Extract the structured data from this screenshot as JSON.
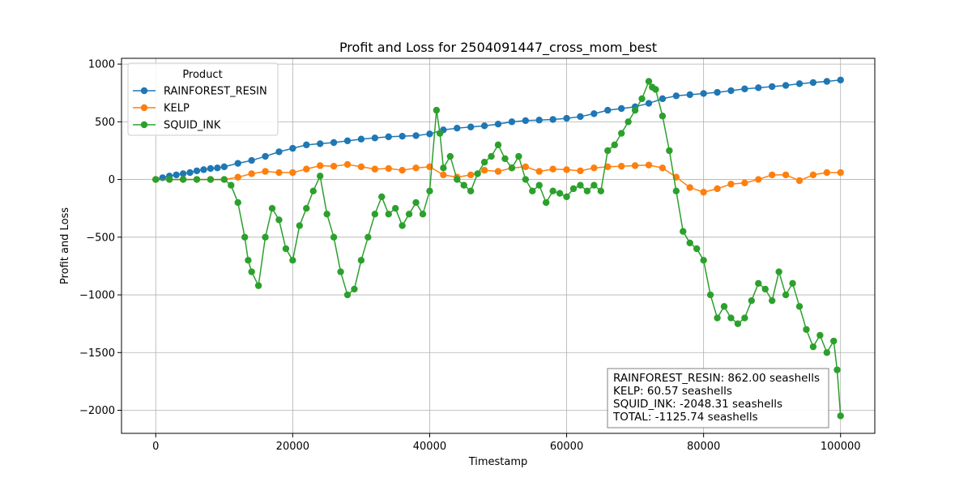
{
  "chart_data": {
    "type": "line",
    "title": "Profit and Loss for 2504091447_cross_mom_best",
    "xlabel": "Timestamp",
    "ylabel": "Profit and Loss",
    "xlim": [
      -5000,
      105000
    ],
    "ylim": [
      -2200,
      1050
    ],
    "xticks": [
      0,
      20000,
      40000,
      60000,
      80000,
      100000
    ],
    "xtick_labels": [
      "0",
      "20000",
      "40000",
      "60000",
      "80000",
      "100000"
    ],
    "yticks": [
      -2000,
      -1500,
      -1000,
      -500,
      0,
      500,
      1000
    ],
    "ytick_labels": [
      "−2000",
      "−1500",
      "−1000",
      "−500",
      "0",
      "500",
      "1000"
    ],
    "grid": true,
    "legend": {
      "title": "Product",
      "placement": "upper-left"
    },
    "series": [
      {
        "name": "RAINFOREST_RESIN",
        "color": "#1f77b4",
        "x": [
          0,
          1000,
          2000,
          3000,
          4000,
          5000,
          6000,
          7000,
          8000,
          9000,
          10000,
          12000,
          14000,
          16000,
          18000,
          20000,
          22000,
          24000,
          26000,
          28000,
          30000,
          32000,
          34000,
          36000,
          38000,
          40000,
          42000,
          44000,
          46000,
          48000,
          50000,
          52000,
          54000,
          56000,
          58000,
          60000,
          62000,
          64000,
          66000,
          68000,
          70000,
          72000,
          74000,
          76000,
          78000,
          80000,
          82000,
          84000,
          86000,
          88000,
          90000,
          92000,
          94000,
          96000,
          98000,
          100000
        ],
        "y": [
          0,
          15,
          30,
          40,
          50,
          60,
          75,
          85,
          95,
          100,
          110,
          140,
          165,
          200,
          240,
          270,
          300,
          310,
          320,
          335,
          350,
          360,
          370,
          375,
          380,
          395,
          430,
          445,
          455,
          465,
          480,
          500,
          510,
          515,
          520,
          530,
          545,
          570,
          600,
          615,
          630,
          660,
          700,
          725,
          735,
          745,
          755,
          770,
          785,
          795,
          805,
          815,
          830,
          840,
          850,
          862
        ]
      },
      {
        "name": "KELP",
        "color": "#ff7f0e",
        "x": [
          0,
          2000,
          4000,
          6000,
          8000,
          10000,
          12000,
          14000,
          16000,
          18000,
          20000,
          22000,
          24000,
          26000,
          28000,
          30000,
          32000,
          34000,
          36000,
          38000,
          40000,
          42000,
          44000,
          46000,
          48000,
          50000,
          52000,
          54000,
          56000,
          58000,
          60000,
          62000,
          64000,
          66000,
          68000,
          70000,
          72000,
          74000,
          76000,
          78000,
          80000,
          82000,
          84000,
          86000,
          88000,
          90000,
          92000,
          94000,
          96000,
          98000,
          100000
        ],
        "y": [
          0,
          0,
          0,
          0,
          0,
          0,
          20,
          50,
          70,
          60,
          60,
          90,
          120,
          115,
          130,
          110,
          90,
          95,
          80,
          100,
          110,
          40,
          20,
          40,
          80,
          70,
          100,
          110,
          70,
          90,
          85,
          75,
          100,
          110,
          115,
          120,
          125,
          100,
          20,
          -70,
          -110,
          -80,
          -40,
          -30,
          0,
          40,
          40,
          -10,
          40,
          60,
          60
        ]
      },
      {
        "name": "SQUID_INK",
        "color": "#2ca02c",
        "x": [
          0,
          2000,
          4000,
          6000,
          8000,
          10000,
          11000,
          12000,
          13000,
          13500,
          14000,
          15000,
          16000,
          17000,
          18000,
          19000,
          20000,
          21000,
          22000,
          23000,
          24000,
          25000,
          26000,
          27000,
          28000,
          29000,
          30000,
          31000,
          32000,
          33000,
          34000,
          35000,
          36000,
          37000,
          38000,
          39000,
          40000,
          41000,
          41500,
          42000,
          43000,
          44000,
          45000,
          46000,
          47000,
          48000,
          49000,
          50000,
          51000,
          52000,
          53000,
          54000,
          55000,
          56000,
          57000,
          58000,
          59000,
          60000,
          61000,
          62000,
          63000,
          64000,
          65000,
          66000,
          67000,
          68000,
          69000,
          70000,
          71000,
          72000,
          72500,
          73000,
          74000,
          75000,
          76000,
          77000,
          78000,
          79000,
          80000,
          81000,
          82000,
          83000,
          84000,
          85000,
          86000,
          87000,
          88000,
          89000,
          90000,
          91000,
          92000,
          93000,
          94000,
          95000,
          96000,
          97000,
          98000,
          99000,
          99500,
          100000
        ],
        "y": [
          0,
          0,
          0,
          0,
          0,
          0,
          -50,
          -200,
          -500,
          -700,
          -800,
          -920,
          -500,
          -250,
          -350,
          -600,
          -700,
          -400,
          -250,
          -100,
          30,
          -300,
          -500,
          -800,
          -1000,
          -950,
          -700,
          -500,
          -300,
          -150,
          -300,
          -250,
          -400,
          -300,
          -200,
          -300,
          -100,
          600,
          400,
          100,
          200,
          0,
          -50,
          -100,
          50,
          150,
          200,
          300,
          180,
          100,
          200,
          0,
          -100,
          -50,
          -200,
          -100,
          -120,
          -150,
          -80,
          -50,
          -100,
          -50,
          -100,
          250,
          300,
          400,
          500,
          600,
          700,
          850,
          800,
          780,
          550,
          250,
          -100,
          -450,
          -550,
          -600,
          -700,
          -1000,
          -1200,
          -1100,
          -1200,
          -1250,
          -1200,
          -1050,
          -900,
          -950,
          -1050,
          -800,
          -1000,
          -900,
          -1100,
          -1300,
          -1450,
          -1350,
          -1500,
          -1400,
          -1650,
          -2048.31
        ]
      }
    ],
    "summary_box": [
      "RAINFOREST_RESIN: 862.00 seashells",
      "KELP: 60.57 seashells",
      "SQUID_INK: -2048.31 seashells",
      "TOTAL: -1125.74 seashells"
    ]
  }
}
